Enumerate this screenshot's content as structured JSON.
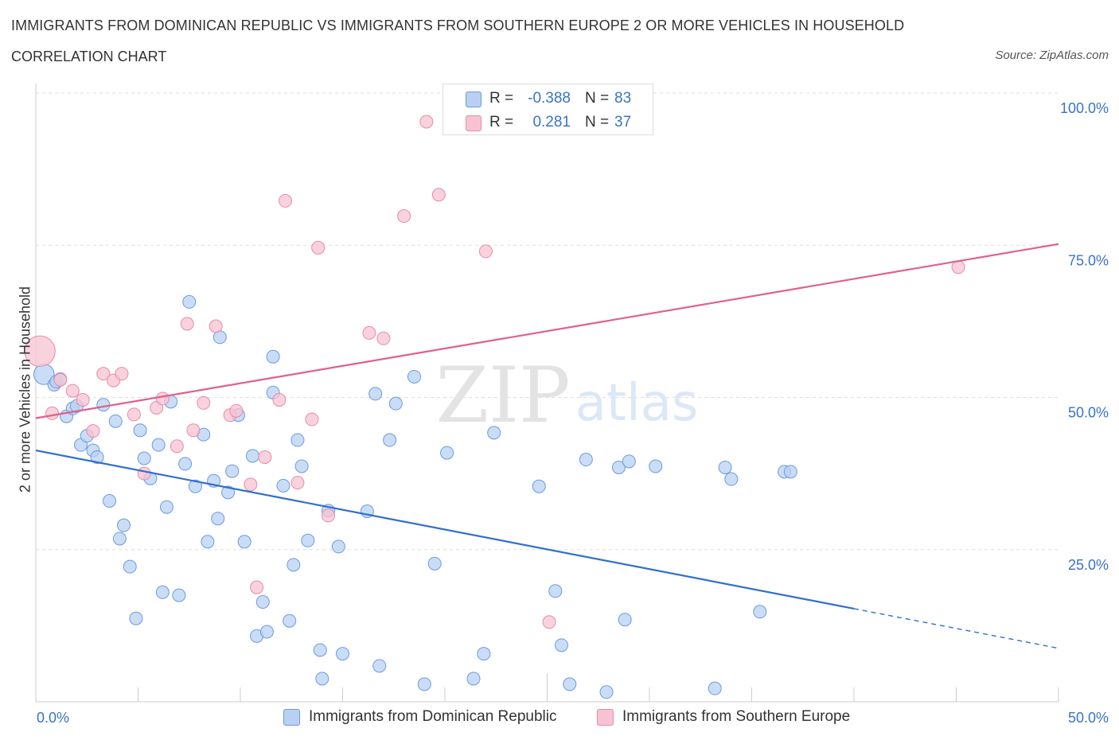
{
  "title": "IMMIGRANTS FROM DOMINICAN REPUBLIC VS IMMIGRANTS FROM SOUTHERN EUROPE 2 OR MORE VEHICLES IN HOUSEHOLD",
  "subtitle": "CORRELATION CHART",
  "source": "Source: ZipAtlas.com",
  "watermark": {
    "zip": "ZIP",
    "atlas": "atlas"
  },
  "legend": {
    "rows": [
      {
        "r_label": "R =",
        "r_value": "-0.388",
        "n_label": "N =",
        "n_value": "83",
        "color": "#b8d1f3"
      },
      {
        "r_label": "R =",
        "r_value": "0.281",
        "n_label": "N =",
        "n_value": "37",
        "color": "#f7c3d3"
      }
    ]
  },
  "bottom_legend": [
    {
      "label": "Immigrants from Dominican Republic",
      "color": "#b8d1f3"
    },
    {
      "label": "Immigrants from Southern Europe",
      "color": "#f7c3d3"
    }
  ],
  "chart_data": {
    "type": "scatter",
    "title": "IMMIGRANTS FROM DOMINICAN REPUBLIC VS IMMIGRANTS FROM SOUTHERN EUROPE 2 OR MORE VEHICLES IN HOUSEHOLD",
    "xlabel": "",
    "ylabel": "2 or more Vehicles in Household",
    "xlim": [
      0,
      50
    ],
    "ylim": [
      0,
      100
    ],
    "x_tick_labels": [
      "0.0%",
      "50.0%"
    ],
    "y_tick_labels": [
      "25.0%",
      "50.0%",
      "75.0%",
      "100.0%"
    ],
    "y_ticks": [
      25,
      50,
      75,
      100
    ],
    "grid": true,
    "legend_position": "top-center",
    "series": [
      {
        "name": "Immigrants from Dominican Republic",
        "color": "#b8d1f3",
        "stroke": "#6b9ae0",
        "trend_color": "#2f6fd0",
        "trend": {
          "x0": 0,
          "y0": 41.3,
          "x_solid_end": 40,
          "x_end": 50,
          "y_end": 8.8
        },
        "points": [
          [
            0.4,
            53.8,
            1.6
          ],
          [
            0.9,
            52.1,
            1
          ],
          [
            1.0,
            52.6,
            1
          ],
          [
            1.2,
            53.0,
            1
          ],
          [
            1.5,
            46.9,
            1
          ],
          [
            1.8,
            48.2,
            1
          ],
          [
            2.0,
            48.6,
            1
          ],
          [
            2.2,
            42.2,
            1
          ],
          [
            2.5,
            43.7,
            1
          ],
          [
            2.8,
            41.3,
            1
          ],
          [
            3.0,
            40.2,
            1
          ],
          [
            3.3,
            48.8,
            1
          ],
          [
            3.6,
            33.0,
            1
          ],
          [
            3.9,
            46.1,
            1
          ],
          [
            4.1,
            26.8,
            1
          ],
          [
            4.3,
            29.0,
            1
          ],
          [
            4.6,
            22.2,
            1
          ],
          [
            4.9,
            13.7,
            1
          ],
          [
            5.1,
            44.6,
            1
          ],
          [
            5.3,
            40.0,
            1
          ],
          [
            5.6,
            36.7,
            1
          ],
          [
            6.0,
            42.2,
            1
          ],
          [
            6.2,
            18.0,
            1
          ],
          [
            6.4,
            32.0,
            1
          ],
          [
            6.6,
            49.3,
            1
          ],
          [
            7.0,
            17.5,
            1
          ],
          [
            7.3,
            39.1,
            1
          ],
          [
            7.5,
            65.7,
            1
          ],
          [
            7.8,
            35.4,
            1
          ],
          [
            8.2,
            43.9,
            1
          ],
          [
            8.4,
            26.3,
            1
          ],
          [
            8.7,
            36.3,
            1
          ],
          [
            8.9,
            30.1,
            1
          ],
          [
            9.0,
            59.9,
            1
          ],
          [
            9.4,
            34.4,
            1
          ],
          [
            9.6,
            37.9,
            1
          ],
          [
            9.9,
            47.1,
            1
          ],
          [
            10.2,
            26.3,
            1
          ],
          [
            10.6,
            40.4,
            1
          ],
          [
            10.8,
            10.8,
            1
          ],
          [
            11.1,
            16.4,
            1
          ],
          [
            11.3,
            11.5,
            1
          ],
          [
            11.6,
            56.7,
            1
          ],
          [
            11.6,
            50.8,
            1
          ],
          [
            12.1,
            35.5,
            1
          ],
          [
            12.4,
            13.3,
            1
          ],
          [
            12.6,
            22.5,
            1
          ],
          [
            12.8,
            43.0,
            1
          ],
          [
            13.0,
            38.7,
            1
          ],
          [
            13.3,
            26.5,
            1
          ],
          [
            13.9,
            8.5,
            1
          ],
          [
            14.0,
            3.8,
            1
          ],
          [
            14.3,
            31.4,
            1
          ],
          [
            14.8,
            25.5,
            1
          ],
          [
            15.0,
            7.9,
            1
          ],
          [
            16.2,
            31.3,
            1
          ],
          [
            16.6,
            50.6,
            1
          ],
          [
            16.8,
            5.9,
            1
          ],
          [
            17.3,
            43.0,
            1
          ],
          [
            17.6,
            49.0,
            1
          ],
          [
            18.5,
            53.4,
            1
          ],
          [
            19.0,
            2.9,
            1
          ],
          [
            19.5,
            22.7,
            1
          ],
          [
            20.1,
            40.9,
            1
          ],
          [
            21.4,
            3.8,
            1
          ],
          [
            21.9,
            7.9,
            1
          ],
          [
            22.4,
            44.2,
            1
          ],
          [
            24.6,
            35.4,
            1
          ],
          [
            25.4,
            18.2,
            1
          ],
          [
            25.7,
            9.3,
            1
          ],
          [
            26.1,
            2.9,
            1
          ],
          [
            26.9,
            39.8,
            1
          ],
          [
            27.9,
            1.6,
            1
          ],
          [
            28.5,
            38.5,
            1
          ],
          [
            28.8,
            13.5,
            1
          ],
          [
            29.0,
            39.5,
            1
          ],
          [
            30.3,
            38.7,
            1
          ],
          [
            33.2,
            2.2,
            1
          ],
          [
            33.7,
            38.5,
            1
          ],
          [
            34.0,
            36.6,
            1
          ],
          [
            35.4,
            14.8,
            1
          ],
          [
            36.6,
            37.8,
            1
          ],
          [
            36.9,
            37.8,
            1
          ]
        ]
      },
      {
        "name": "Immigrants from Southern Europe",
        "color": "#f7c3d3",
        "stroke": "#e98aa8",
        "trend_color": "#e0608a",
        "trend": {
          "x0": 0,
          "y0": 46.6,
          "x_solid_end": 50,
          "x_end": 50,
          "y_end": 75.2
        },
        "points": [
          [
            0.2,
            57.6,
            2.4
          ],
          [
            0.8,
            47.4,
            1
          ],
          [
            1.2,
            52.9,
            1
          ],
          [
            1.8,
            51.1,
            1
          ],
          [
            2.3,
            49.6,
            1
          ],
          [
            2.8,
            44.5,
            1
          ],
          [
            3.3,
            53.9,
            1
          ],
          [
            3.8,
            52.8,
            1
          ],
          [
            4.2,
            53.9,
            1
          ],
          [
            4.8,
            47.2,
            1
          ],
          [
            5.3,
            37.5,
            1
          ],
          [
            5.9,
            48.3,
            1
          ],
          [
            6.2,
            49.8,
            1
          ],
          [
            6.9,
            42.0,
            1
          ],
          [
            7.4,
            62.1,
            1
          ],
          [
            7.7,
            44.6,
            1
          ],
          [
            8.2,
            49.1,
            1
          ],
          [
            8.8,
            61.7,
            1
          ],
          [
            9.5,
            47.1,
            1
          ],
          [
            9.8,
            47.8,
            1
          ],
          [
            10.5,
            35.7,
            1
          ],
          [
            10.8,
            18.8,
            1
          ],
          [
            11.2,
            40.2,
            1
          ],
          [
            11.9,
            49.6,
            1
          ],
          [
            12.2,
            82.3,
            1
          ],
          [
            12.8,
            36.0,
            1
          ],
          [
            13.5,
            46.4,
            1
          ],
          [
            13.8,
            74.6,
            1
          ],
          [
            14.3,
            30.6,
            1
          ],
          [
            16.3,
            60.6,
            1
          ],
          [
            17.0,
            59.7,
            1
          ],
          [
            18.0,
            79.8,
            1
          ],
          [
            19.1,
            95.3,
            1
          ],
          [
            19.7,
            83.3,
            1
          ],
          [
            22.0,
            74.0,
            1
          ],
          [
            25.1,
            13.1,
            1
          ],
          [
            45.1,
            71.4,
            1
          ]
        ]
      }
    ]
  }
}
